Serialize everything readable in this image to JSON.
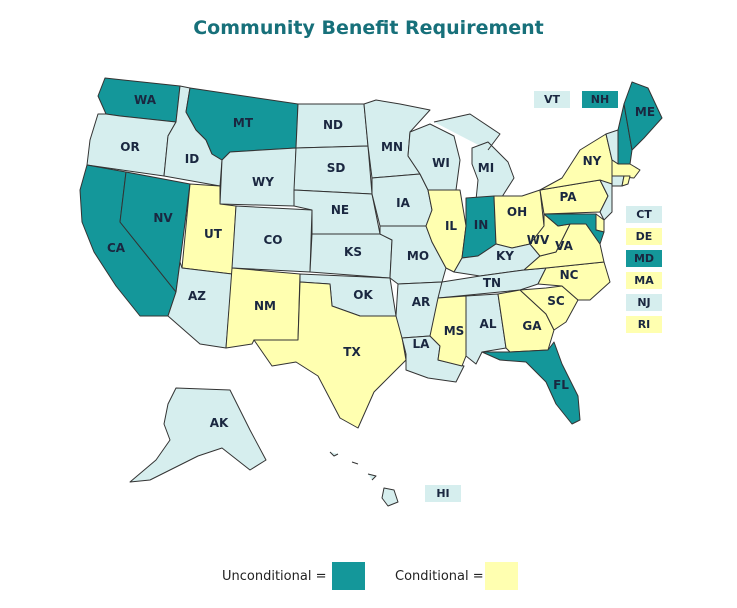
{
  "title": "Community Benefit Requirement",
  "colors": {
    "unconditional": "#14979a",
    "conditional": "#ffffb0",
    "none": "#d6eeee"
  },
  "legend": {
    "unconditional": "Unconditional =",
    "conditional": "Conditional ="
  },
  "states": {
    "WA": "unconditional",
    "OR": "none",
    "CA": "unconditional",
    "NV": "unconditional",
    "ID": "none",
    "MT": "unconditional",
    "WY": "none",
    "UT": "conditional",
    "AZ": "none",
    "CO": "none",
    "NM": "conditional",
    "ND": "none",
    "SD": "none",
    "NE": "none",
    "KS": "none",
    "OK": "none",
    "TX": "conditional",
    "MN": "none",
    "IA": "none",
    "MO": "none",
    "AR": "none",
    "LA": "none",
    "WI": "none",
    "IL": "conditional",
    "MI": "none",
    "IN": "unconditional",
    "OH": "conditional",
    "KY": "none",
    "TN": "none",
    "MS": "conditional",
    "AL": "none",
    "GA": "conditional",
    "FL": "unconditional",
    "SC": "conditional",
    "NC": "conditional",
    "VA": "conditional",
    "WV": "conditional",
    "PA": "conditional",
    "NY": "conditional",
    "ME": "unconditional",
    "AK": "none",
    "HI": "none",
    "VT": "none",
    "NH": "unconditional",
    "CT": "none",
    "DE": "conditional",
    "MD": "unconditional",
    "MA": "conditional",
    "NJ": "none",
    "RI": "conditional"
  },
  "labels": {
    "WA": "WA",
    "OR": "OR",
    "CA": "CA",
    "NV": "NV",
    "ID": "ID",
    "MT": "MT",
    "WY": "WY",
    "UT": "UT",
    "AZ": "AZ",
    "CO": "CO",
    "NM": "NM",
    "ND": "ND",
    "SD": "SD",
    "NE": "NE",
    "KS": "KS",
    "OK": "OK",
    "TX": "TX",
    "MN": "MN",
    "IA": "IA",
    "MO": "MO",
    "AR": "AR",
    "LA": "LA",
    "WI": "WI",
    "IL": "IL",
    "MI": "MI",
    "IN": "IN",
    "OH": "OH",
    "KY": "KY",
    "TN": "TN",
    "MS": "MS",
    "AL": "AL",
    "GA": "GA",
    "FL": "FL",
    "SC": "SC",
    "NC": "NC",
    "VA": "VA",
    "WV": "WV",
    "PA": "PA",
    "NY": "NY",
    "ME": "ME",
    "AK": "AK"
  },
  "boxes": {
    "VT": "VT",
    "NH": "NH",
    "CT": "CT",
    "DE": "DE",
    "MD": "MD",
    "MA": "MA",
    "NJ": "NJ",
    "RI": "RI",
    "HI": "HI"
  }
}
